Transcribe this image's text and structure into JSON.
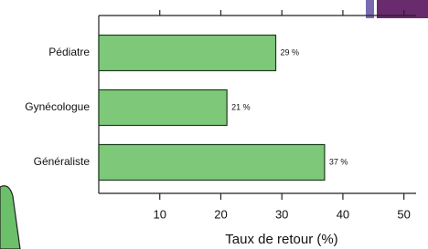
{
  "chart_data": {
    "type": "bar",
    "orientation": "horizontal",
    "categories": [
      "Pédiatre",
      "Gynécologue",
      "Généraliste"
    ],
    "values": [
      29,
      21,
      37
    ],
    "value_labels": [
      "29 %",
      "21 %",
      "37 %"
    ],
    "color": "#7ec87a",
    "x_label": "Taux de retour (%)",
    "xlim": [
      0,
      52
    ],
    "xticks": [
      10,
      20,
      30,
      40,
      50
    ]
  }
}
